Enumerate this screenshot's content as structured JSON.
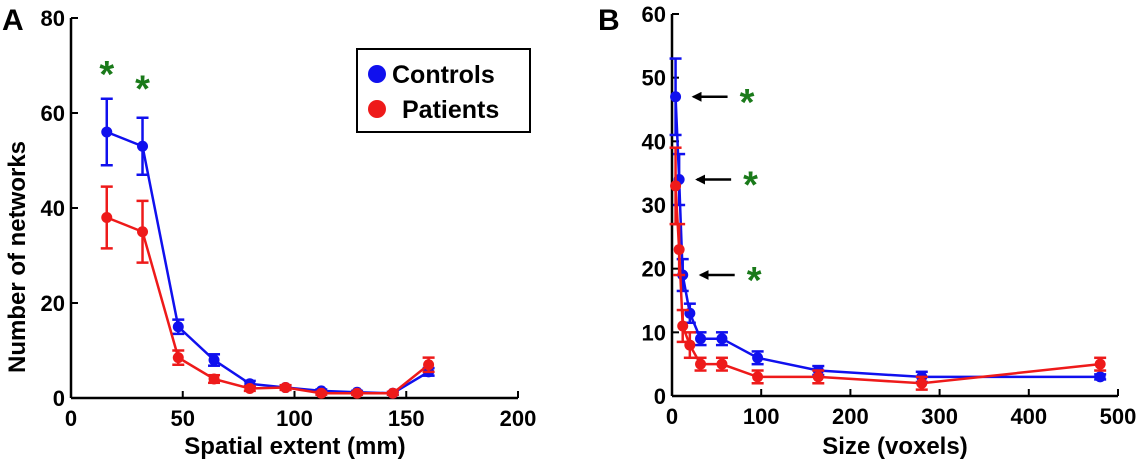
{
  "colors": {
    "controls": "#1010ee",
    "patients": "#ee1a1a",
    "significance": "#1a7a1a",
    "axis": "#000000"
  },
  "chart_data": [
    {
      "panel": "A",
      "type": "line",
      "xlabel": "Spatial extent (mm)",
      "ylabel": "Number of networks",
      "xlim": [
        0,
        200
      ],
      "ylim": [
        0,
        80
      ],
      "xticks": [
        0,
        50,
        100,
        150,
        200
      ],
      "yticks": [
        0,
        20,
        40,
        60,
        80
      ],
      "grid": false,
      "legend": {
        "position": "top-right",
        "entries": [
          "Controls",
          "Patients"
        ]
      },
      "series": [
        {
          "name": "Controls",
          "x": [
            16,
            32,
            48,
            64,
            80,
            96,
            112,
            128,
            144,
            160
          ],
          "y": [
            56,
            53,
            15,
            8,
            3,
            2.2,
            1.5,
            1.2,
            1,
            5.5
          ],
          "err": [
            7,
            6,
            1.5,
            1.2,
            0.6,
            0.4,
            0.3,
            0.3,
            0.3,
            0.8
          ]
        },
        {
          "name": "Patients",
          "x": [
            16,
            32,
            48,
            64,
            80,
            96,
            112,
            128,
            144,
            160
          ],
          "y": [
            38,
            35,
            8.5,
            4,
            2,
            2.2,
            1,
            1,
            1,
            7
          ],
          "err": [
            6.5,
            6.5,
            1.5,
            0.8,
            0.5,
            0.5,
            0.3,
            0.3,
            0.3,
            1.5
          ]
        }
      ],
      "annotations": [
        {
          "text": "*",
          "x": 16,
          "y": 68
        },
        {
          "text": "*",
          "x": 32,
          "y": 65
        }
      ]
    },
    {
      "panel": "B",
      "type": "line",
      "xlabel": "Size (voxels)",
      "ylabel": "",
      "xlim": [
        0,
        500
      ],
      "ylim": [
        0,
        60
      ],
      "xticks": [
        0,
        100,
        200,
        300,
        400,
        500
      ],
      "yticks": [
        0,
        10,
        20,
        30,
        40,
        50,
        60
      ],
      "grid": false,
      "series": [
        {
          "name": "Controls",
          "x": [
            4,
            8,
            12,
            20,
            32,
            56,
            96,
            164,
            280,
            480
          ],
          "y": [
            47,
            34,
            19,
            13,
            9,
            9,
            6,
            4,
            3,
            3
          ],
          "err": [
            6,
            4,
            2.5,
            1.5,
            1,
            1,
            1,
            0.7,
            0.8,
            0.4
          ]
        },
        {
          "name": "Patients",
          "x": [
            4,
            8,
            12,
            20,
            32,
            56,
            96,
            164,
            280,
            480
          ],
          "y": [
            33,
            23,
            11,
            8,
            5,
            5,
            3,
            3,
            2,
            5
          ],
          "err": [
            6,
            4,
            2.5,
            2,
            1,
            1,
            1,
            1,
            1,
            1
          ]
        }
      ],
      "annotations": [
        {
          "text": "*",
          "arrow_to": [
            4,
            47
          ]
        },
        {
          "text": "*",
          "arrow_to": [
            8,
            34
          ]
        },
        {
          "text": "*",
          "arrow_to": [
            12,
            19
          ]
        }
      ]
    }
  ]
}
